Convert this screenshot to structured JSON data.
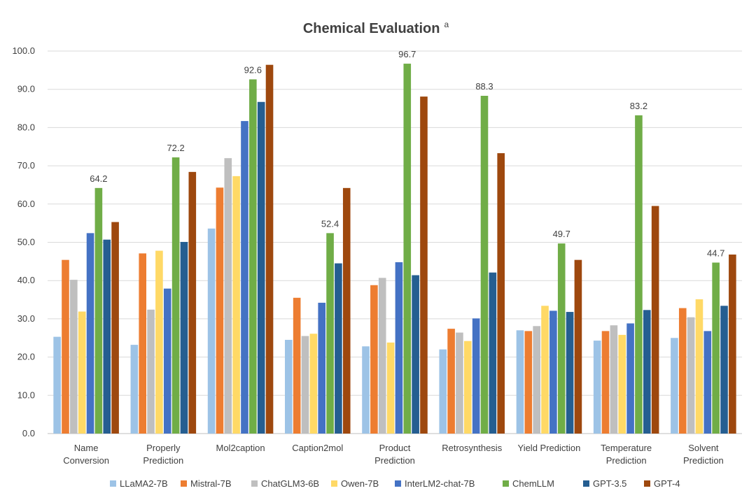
{
  "chart_data": {
    "type": "bar",
    "title": "Chemical Evaluation",
    "title_superscript": "a",
    "xlabel": "",
    "ylabel": "",
    "ylim": [
      0,
      100
    ],
    "yticks": [
      "0.0",
      "10.0",
      "20.0",
      "30.0",
      "40.0",
      "50.0",
      "60.0",
      "70.0",
      "80.0",
      "90.0",
      "100.0"
    ],
    "grid": true,
    "legend_position": "bottom",
    "categories": [
      [
        "Name",
        "Conversion"
      ],
      [
        "Properly",
        "Prediction"
      ],
      [
        "Mol2caption"
      ],
      [
        "Caption2mol"
      ],
      [
        "Product",
        "Prediction"
      ],
      [
        "Retrosynthesis"
      ],
      [
        "Yield Prediction"
      ],
      [
        "Temperature",
        "Prediction"
      ],
      [
        "Solvent",
        "Prediction"
      ]
    ],
    "series": [
      {
        "name": "LLaMA2-7B",
        "color": "#9dc3e6",
        "values": [
          25.3,
          23.2,
          53.6,
          24.5,
          22.8,
          22.0,
          27.0,
          24.3,
          25.0
        ]
      },
      {
        "name": "Mistral-7B",
        "color": "#ed7d31",
        "values": [
          45.4,
          47.1,
          64.3,
          35.5,
          38.8,
          27.4,
          26.8,
          26.8,
          32.8
        ]
      },
      {
        "name": "ChatGLM3-6B",
        "color": "#bfbfbf",
        "values": [
          40.2,
          32.4,
          72.0,
          25.5,
          40.7,
          26.4,
          28.1,
          28.3,
          30.4
        ]
      },
      {
        "name": "Owen-7B",
        "color": "#ffd966",
        "values": [
          31.9,
          47.8,
          67.3,
          26.1,
          23.8,
          24.2,
          33.4,
          25.8,
          35.1
        ]
      },
      {
        "name": "InterLM2-chat-7B",
        "color": "#4472c4",
        "values": [
          52.4,
          37.9,
          81.7,
          34.2,
          44.8,
          30.1,
          32.1,
          28.8,
          26.8
        ]
      },
      {
        "name": "ChemLLM",
        "color": "#70ad47",
        "values": [
          64.2,
          72.2,
          92.6,
          52.4,
          96.7,
          88.3,
          49.7,
          83.2,
          44.7
        ]
      },
      {
        "name": "GPT-3.5",
        "color": "#255e91",
        "values": [
          50.7,
          50.1,
          86.7,
          44.5,
          41.4,
          42.1,
          31.8,
          32.3,
          33.4
        ]
      },
      {
        "name": "GPT-4",
        "color": "#9e480e",
        "values": [
          55.3,
          68.4,
          96.4,
          64.2,
          88.1,
          73.3,
          45.4,
          59.5,
          46.8
        ]
      }
    ],
    "labeled_series": "ChemLLM",
    "data_labels": [
      "64.2",
      "72.2",
      "92.6",
      "52.4",
      "96.7",
      "88.3",
      "49.7",
      "83.2",
      "44.7"
    ]
  }
}
